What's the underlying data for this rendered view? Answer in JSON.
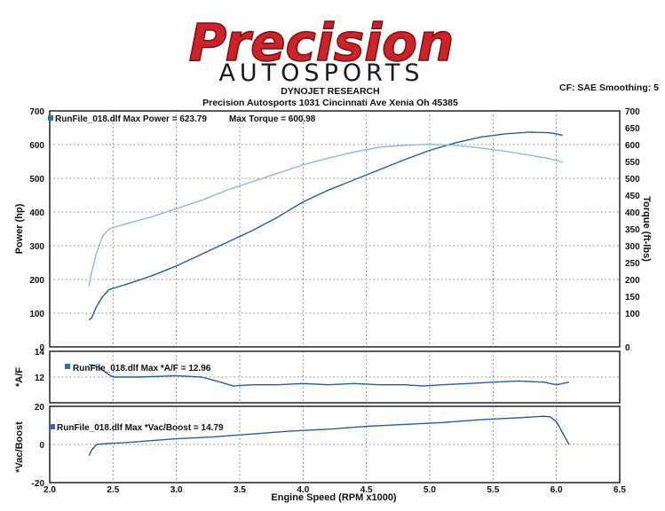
{
  "header": {
    "logo_line1": "Precision",
    "logo_line2": "AUTOSPORTS",
    "title": "DYNOJET RESEARCH",
    "subtitle": "Precision Autosports 1031 Cincinnati Ave Xenia Oh 45385",
    "correction": "CF: SAE  Smoothing: 5"
  },
  "chart_data": [
    {
      "type": "line",
      "legend": "RunFile_018.dlf Max Power = 623.79",
      "legend2": "Max Torque = 600.98",
      "xlabel": "Engine Speed (RPM x1000)",
      "ylabel": "Power (hp)",
      "y2label": "Torque (ft-lbs)",
      "xlim": [
        2.0,
        6.5
      ],
      "ylim": [
        0,
        700
      ],
      "y2lim": [
        0,
        700
      ],
      "yticks": [
        "0",
        "100",
        "200",
        "300",
        "400",
        "500",
        "600",
        "700"
      ],
      "y2ticks": [
        "0",
        "100",
        "150",
        "200",
        "250",
        "300",
        "350",
        "400",
        "450",
        "500",
        "550",
        "600",
        "650",
        "700"
      ],
      "colors": {
        "power": "#1f5fa0",
        "torque": "#8fb8df"
      },
      "series": [
        {
          "key": "power",
          "x": [
            2.31,
            2.33,
            2.37,
            2.42,
            2.47,
            2.6,
            2.8,
            3.0,
            3.2,
            3.4,
            3.6,
            3.8,
            4.0,
            4.2,
            4.4,
            4.6,
            4.8,
            5.0,
            5.2,
            5.4,
            5.6,
            5.8,
            5.95,
            6.05
          ],
          "y": [
            80,
            85,
            120,
            150,
            170,
            185,
            210,
            240,
            275,
            310,
            345,
            385,
            430,
            465,
            495,
            525,
            555,
            583,
            605,
            622,
            632,
            637,
            635,
            628
          ]
        },
        {
          "key": "torque",
          "x": [
            2.31,
            2.33,
            2.37,
            2.42,
            2.47,
            2.6,
            2.8,
            3.0,
            3.2,
            3.4,
            3.6,
            3.8,
            4.0,
            4.2,
            4.4,
            4.6,
            4.8,
            5.0,
            5.2,
            5.4,
            5.6,
            5.8,
            5.95,
            6.05
          ],
          "y": [
            180,
            220,
            280,
            330,
            350,
            365,
            385,
            410,
            435,
            465,
            490,
            515,
            540,
            560,
            578,
            592,
            598,
            601,
            598,
            590,
            580,
            568,
            558,
            548
          ]
        }
      ]
    },
    {
      "type": "line",
      "legend": "RunFile_018.dlf Max *A/F = 12.96",
      "ylabel": "*A/F",
      "xlim": [
        2.0,
        6.5
      ],
      "ylim": [
        10,
        14
      ],
      "yticks": [
        "14",
        "12"
      ],
      "colors": {
        "af": "#1f5fa0"
      },
      "series": [
        {
          "key": "af",
          "x": [
            2.31,
            2.38,
            2.45,
            2.5,
            2.7,
            3.0,
            3.2,
            3.35,
            3.45,
            3.6,
            3.8,
            4.0,
            4.2,
            4.4,
            4.6,
            4.8,
            4.95,
            5.1,
            5.3,
            5.5,
            5.7,
            5.9,
            6.0,
            6.1
          ],
          "y": [
            12.96,
            12.8,
            12.3,
            12.0,
            12.0,
            12.1,
            12.0,
            11.6,
            11.3,
            11.4,
            11.4,
            11.5,
            11.4,
            11.5,
            11.4,
            11.4,
            11.3,
            11.4,
            11.5,
            11.6,
            11.7,
            11.6,
            11.4,
            11.6
          ]
        }
      ]
    },
    {
      "type": "line",
      "legend": "RunFile_018.dlf Max *Vac/Boost = 14.79",
      "ylabel": "*Vac/Boost",
      "xlim": [
        2.0,
        6.5
      ],
      "ylim": [
        -20,
        20
      ],
      "yticks": [
        "20",
        "0",
        "-20"
      ],
      "xticks": [
        "2.0",
        "2.5",
        "3.0",
        "3.5",
        "4.0",
        "4.5",
        "5.0",
        "5.5",
        "6.0",
        "6.5"
      ],
      "colors": {
        "boost": "#1f5fa0"
      },
      "series": [
        {
          "key": "boost",
          "x": [
            2.31,
            2.33,
            2.37,
            2.45,
            2.6,
            2.8,
            3.0,
            3.3,
            3.6,
            3.9,
            4.2,
            4.5,
            4.8,
            5.1,
            5.4,
            5.7,
            5.9,
            5.95,
            6.0,
            6.05,
            6.1
          ],
          "y": [
            -6,
            -3,
            0,
            0.5,
            1,
            2,
            3,
            4,
            5.5,
            7,
            8,
            9.5,
            10.5,
            11.5,
            13,
            14,
            14.8,
            14.5,
            12,
            6,
            0
          ]
        }
      ]
    }
  ]
}
